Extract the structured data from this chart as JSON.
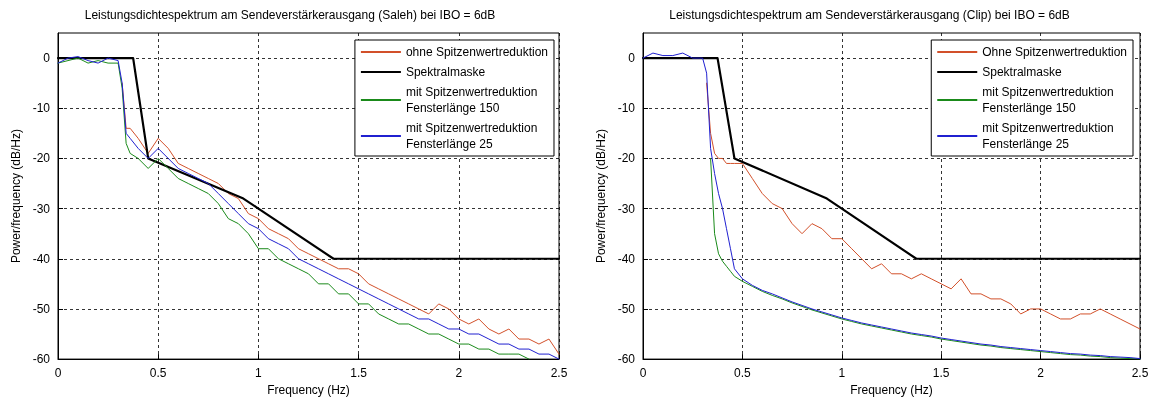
{
  "chart_data": [
    {
      "type": "line",
      "title": "Leistungsdichtespektrum am Sendeverstärkerausgang (Saleh) bei IBO = 6dB",
      "xlabel": "Frequency (Hz)",
      "ylabel": "Power/frequency (dB/Hz)",
      "xlim": [
        0,
        2.5
      ],
      "xticks": [
        0,
        0.5,
        1,
        1.5,
        2,
        2.5
      ],
      "ylim": [
        -60,
        5
      ],
      "yticks": [
        -60,
        -50,
        -40,
        -30,
        -20,
        -10,
        0
      ],
      "grid": true,
      "legend": "top right",
      "marker": "none",
      "x": [
        0,
        0.05,
        0.1,
        0.15,
        0.2,
        0.25,
        0.3,
        0.32,
        0.34,
        0.36,
        0.4,
        0.45,
        0.5,
        0.55,
        0.6,
        0.65,
        0.7,
        0.75,
        0.8,
        0.85,
        0.9,
        0.95,
        1,
        1.05,
        1.1,
        1.15,
        1.2,
        1.25,
        1.3,
        1.35,
        1.4,
        1.45,
        1.5,
        1.55,
        1.6,
        1.65,
        1.7,
        1.75,
        1.8,
        1.85,
        1.9,
        1.95,
        2,
        2.05,
        2.1,
        2.15,
        2.2,
        2.25,
        2.3,
        2.35,
        2.4,
        2.45,
        2.5
      ],
      "series": [
        {
          "name": "ohne Spitzenwertreduktion",
          "color": "#d2502a",
          "values": [
            null,
            null,
            null,
            null,
            null,
            null,
            null,
            -5,
            -14,
            -14,
            -16,
            -19,
            -16,
            -18,
            -21,
            -22,
            -23,
            -24,
            -25,
            -27,
            -28,
            -31,
            -32,
            -34,
            -35,
            -36,
            -38,
            -39,
            -40,
            -41,
            -42,
            -42,
            -43,
            -45,
            -46,
            -47,
            -48,
            -49,
            -50,
            -51,
            -49,
            -50,
            -52,
            -53,
            -52,
            -54,
            -55,
            -54,
            -56,
            -56,
            -57,
            -56,
            -59
          ]
        },
        {
          "name": "Spektralmaske",
          "color": "#000000",
          "x": [
            0,
            0.375,
            0.45,
            0.925,
            1,
            1.375,
            2.5
          ],
          "values": [
            0,
            0,
            -20,
            -28,
            -30,
            -40,
            -40
          ]
        },
        {
          "name": "mit Spitzenwertreduktion\nFensterlänge 150",
          "color": "#1a8a1a",
          "values": [
            -1,
            -0.5,
            0,
            -1,
            -0.5,
            -1,
            -1,
            -6,
            -17,
            -19,
            -20,
            -22,
            -20,
            -22,
            -24,
            -25,
            -26,
            -27,
            -29,
            -32,
            -33,
            -35,
            -38,
            -38,
            -40,
            -41,
            -42,
            -43,
            -45,
            -45,
            -47,
            -47,
            -49,
            -49,
            -51,
            -52,
            -53,
            -53,
            -54,
            -55,
            -55,
            -56,
            -57,
            -57,
            -58,
            -58,
            -59,
            -59,
            -59,
            -60,
            null,
            null,
            null
          ]
        },
        {
          "name": "mit Spitzenwertreduktion\nFensterlänge 25",
          "color": "#2020d0",
          "values": [
            -1,
            0,
            0.3,
            -0.5,
            -1,
            0,
            -0.5,
            -5,
            -15,
            -16,
            -18,
            -20,
            -18,
            -20,
            -22,
            -23,
            -24,
            -25,
            -27,
            -29,
            -31,
            -33,
            -34,
            -36,
            -37,
            -38,
            -40,
            -41,
            -42,
            -43,
            -44,
            -45,
            -46,
            -47,
            -48,
            -49,
            -50,
            -51,
            -52,
            -52,
            -53,
            -54,
            -54,
            -55,
            -55,
            -56,
            -57,
            -57,
            -58,
            -58,
            -59,
            -59,
            -60
          ]
        }
      ]
    },
    {
      "type": "line",
      "title": "Leistungsdichtespektrum am Sendeverstärkerausgang (Clip) bei IBO = 6dB",
      "xlabel": "Frequency (Hz)",
      "ylabel": "Power/frequency (dB/Hz)",
      "xlim": [
        0,
        2.5
      ],
      "xticks": [
        0,
        0.5,
        1,
        1.5,
        2,
        2.5
      ],
      "ylim": [
        -60,
        5
      ],
      "yticks": [
        -60,
        -50,
        -40,
        -30,
        -20,
        -10,
        0
      ],
      "grid": true,
      "legend": "top right",
      "marker": "none",
      "x": [
        0,
        0.05,
        0.1,
        0.15,
        0.2,
        0.25,
        0.3,
        0.32,
        0.34,
        0.36,
        0.38,
        0.4,
        0.42,
        0.44,
        0.46,
        0.5,
        0.55,
        0.6,
        0.65,
        0.7,
        0.75,
        0.8,
        0.85,
        0.9,
        0.95,
        1,
        1.05,
        1.1,
        1.15,
        1.2,
        1.25,
        1.3,
        1.35,
        1.4,
        1.45,
        1.5,
        1.55,
        1.6,
        1.65,
        1.7,
        1.75,
        1.8,
        1.85,
        1.9,
        1.95,
        2,
        2.05,
        2.1,
        2.15,
        2.2,
        2.25,
        2.3,
        2.35,
        2.4,
        2.45,
        2.5
      ],
      "series": [
        {
          "name": "Ohne Spitzenwertreduktion",
          "color": "#d2502a",
          "values": [
            null,
            null,
            null,
            null,
            null,
            null,
            null,
            -5,
            -15,
            -19,
            -20,
            -20,
            -21,
            -21,
            -21,
            -21,
            -24,
            -27,
            -29,
            -30,
            -33,
            -35,
            -33,
            -34,
            -36,
            -36,
            -38,
            -40,
            -42,
            -41,
            -43,
            -43,
            -44,
            -43,
            -44,
            -45,
            -46,
            -44,
            -47,
            -47,
            -48,
            -48,
            -49,
            -51,
            -50,
            -50,
            -51,
            -52,
            -52,
            -51,
            -51,
            -50,
            -51,
            -52,
            -53,
            -54
          ]
        },
        {
          "name": "Spektralmaske",
          "color": "#000000",
          "x": [
            0,
            0.375,
            0.46,
            0.925,
            1,
            1.375,
            2.5
          ],
          "values": [
            0,
            0,
            -20,
            -28,
            -30,
            -40,
            -40
          ]
        },
        {
          "name": "mit Spitzenwertreduktion\nFensterlänge 150",
          "color": "#1a8a1a",
          "values": [
            null,
            null,
            null,
            null,
            null,
            null,
            null,
            null,
            -20,
            -35,
            -39,
            -40.5,
            -41.5,
            -42.5,
            -43.5,
            -44.5,
            -45.5,
            -46.5,
            -47.3,
            -48,
            -48.8,
            -49.5,
            -50.2,
            -50.8,
            -51.4,
            -52,
            -52.5,
            -53,
            -53.4,
            -53.8,
            -54.2,
            -54.6,
            -55,
            -55.3,
            -55.6,
            -56,
            -56.3,
            -56.6,
            -56.9,
            -57.2,
            -57.4,
            -57.7,
            -57.9,
            -58.1,
            -58.3,
            -58.5,
            -58.7,
            -58.9,
            -59.1,
            -59.2,
            -59.4,
            -59.5,
            -59.7,
            -59.8,
            -59.9,
            -60
          ]
        },
        {
          "name": "mit Spitzenwertreduktion\nFensterlänge 25",
          "color": "#2020d0",
          "values": [
            0,
            1,
            0.5,
            0.5,
            1,
            0,
            0,
            -3,
            -18,
            -23,
            -27,
            -30,
            -34,
            -38,
            -42,
            -44,
            -45.3,
            -46.3,
            -47,
            -47.8,
            -48.6,
            -49.3,
            -50,
            -50.6,
            -51.2,
            -51.8,
            -52.3,
            -52.8,
            -53.2,
            -53.6,
            -54,
            -54.4,
            -54.8,
            -55.1,
            -55.4,
            -55.8,
            -56.1,
            -56.4,
            -56.7,
            -57,
            -57.2,
            -57.5,
            -57.7,
            -57.9,
            -58.1,
            -58.3,
            -58.5,
            -58.7,
            -58.9,
            -59,
            -59.2,
            -59.3,
            -59.5,
            -59.6,
            -59.7,
            -59.9
          ]
        }
      ]
    }
  ]
}
